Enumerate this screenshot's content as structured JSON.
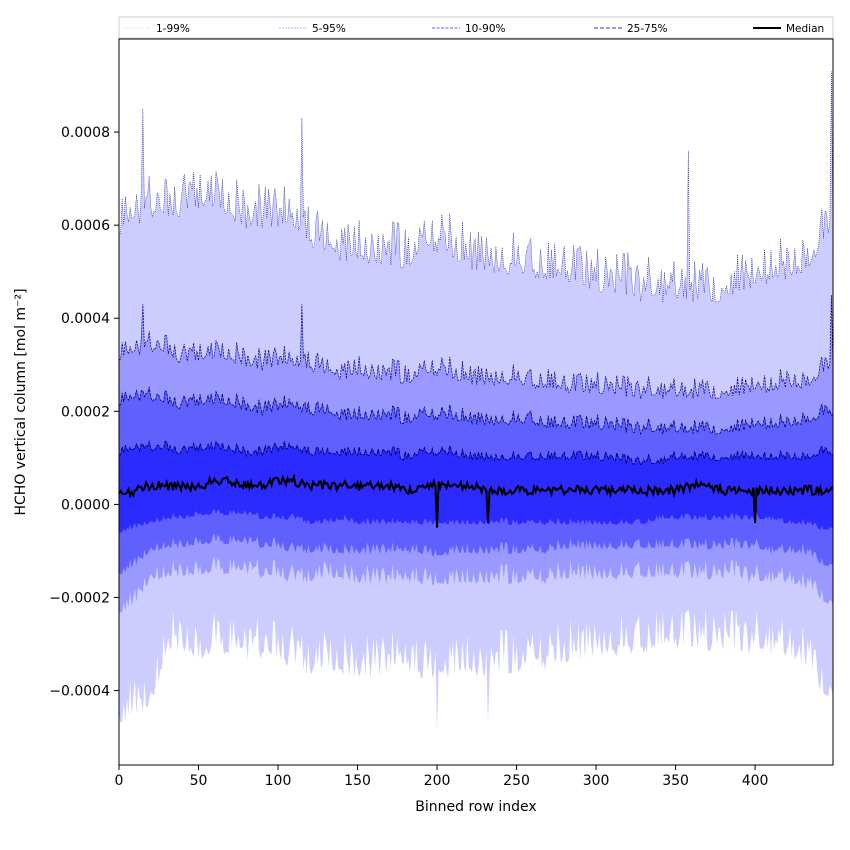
{
  "chart_data": {
    "type": "area",
    "title": "",
    "xlabel": "Binned row index",
    "ylabel": "HCHO vertical column [mol m⁻²]",
    "xlim": [
      0,
      449
    ],
    "ylim": [
      -0.00056,
      0.001
    ],
    "x_ticks": [
      0,
      50,
      100,
      150,
      200,
      250,
      300,
      350,
      400
    ],
    "y_ticks": [
      -0.0004,
      -0.0002,
      0.0,
      0.0002,
      0.0004,
      0.0006,
      0.0008
    ],
    "y_tick_labels": [
      "−0.0004",
      "−0.0002",
      "0.0000",
      "0.0002",
      "0.0004",
      "0.0006",
      "0.0008"
    ],
    "grid": false,
    "legend_position": "top",
    "x": [
      0,
      10,
      20,
      30,
      40,
      50,
      60,
      70,
      80,
      90,
      100,
      110,
      120,
      130,
      140,
      150,
      160,
      170,
      180,
      190,
      200,
      210,
      220,
      230,
      240,
      250,
      260,
      270,
      280,
      290,
      300,
      310,
      320,
      330,
      340,
      350,
      360,
      370,
      380,
      390,
      400,
      410,
      420,
      430,
      440,
      449
    ],
    "series": [
      {
        "name": "1-99%",
        "style": "fill",
        "color": "#ccccff",
        "lower": [
          -0.00046,
          -0.00044,
          -0.00043,
          -0.0003,
          -0.0003,
          -0.00031,
          -0.0003,
          -0.0003,
          -0.00031,
          -0.00031,
          -0.00032,
          -0.00033,
          -0.00035,
          -0.00034,
          -0.00034,
          -0.00035,
          -0.00035,
          -0.00034,
          -0.00034,
          -0.00035,
          -0.00036,
          -0.00034,
          -0.00034,
          -0.00035,
          -0.00034,
          -0.00034,
          -0.00033,
          -0.00033,
          -0.00032,
          -0.00031,
          -0.0003,
          -0.0003,
          -0.0003,
          -0.0003,
          -0.00029,
          -0.00029,
          -0.00029,
          -0.00029,
          -0.00029,
          -0.0003,
          -0.0003,
          -0.0003,
          -0.00031,
          -0.00032,
          -0.00037,
          -0.0004
        ],
        "upper": [
          0.0006,
          0.00062,
          0.00064,
          0.00063,
          0.00064,
          0.00066,
          0.00065,
          0.00064,
          0.00062,
          0.00062,
          0.00062,
          0.0006,
          0.00058,
          0.00056,
          0.00055,
          0.00055,
          0.00054,
          0.00054,
          0.00053,
          0.00055,
          0.00057,
          0.00055,
          0.00053,
          0.00053,
          0.00052,
          0.00052,
          0.00051,
          0.0005,
          0.0005,
          0.00049,
          0.00048,
          0.00048,
          0.00047,
          0.00046,
          0.00046,
          0.00046,
          0.00046,
          0.00046,
          0.00046,
          0.00047,
          0.00048,
          0.0005,
          0.0005,
          0.00052,
          0.00056,
          0.0006
        ]
      },
      {
        "name": "5-95%",
        "style": "fill",
        "color": "#9999ff",
        "lower": [
          -0.00023,
          -0.00021,
          -0.00016,
          -0.00015,
          -0.00015,
          -0.00014,
          -0.00014,
          -0.00014,
          -0.00014,
          -0.00015,
          -0.00015,
          -0.00016,
          -0.00016,
          -0.00015,
          -0.00015,
          -0.00016,
          -0.00016,
          -0.00016,
          -0.00016,
          -0.00016,
          -0.00017,
          -0.00016,
          -0.00016,
          -0.00016,
          -0.00016,
          -0.00016,
          -0.00016,
          -0.00016,
          -0.00015,
          -0.00015,
          -0.00015,
          -0.00015,
          -0.00015,
          -0.00015,
          -0.00015,
          -0.00015,
          -0.00015,
          -0.00015,
          -0.00015,
          -0.00015,
          -0.00016,
          -0.00016,
          -0.00016,
          -0.00017,
          -0.00019,
          -0.00021
        ],
        "upper": [
          0.00032,
          0.00033,
          0.00034,
          0.00033,
          0.00031,
          0.00032,
          0.00032,
          0.00032,
          0.00031,
          0.0003,
          0.00031,
          0.0003,
          0.0003,
          0.00029,
          0.00028,
          0.00029,
          0.00028,
          0.00028,
          0.00027,
          0.00028,
          0.00029,
          0.00028,
          0.00027,
          0.00027,
          0.00027,
          0.00027,
          0.00026,
          0.00026,
          0.00025,
          0.00025,
          0.00025,
          0.00025,
          0.00024,
          0.00024,
          0.00024,
          0.00024,
          0.00024,
          0.00024,
          0.00024,
          0.00024,
          0.00025,
          0.00025,
          0.00026,
          0.00026,
          0.00028,
          0.0003
        ]
      },
      {
        "name": "10-90%",
        "style": "fill",
        "color": "#6060ff",
        "lower": [
          -0.00015,
          -0.00013,
          -0.0001,
          -9e-05,
          -9e-05,
          -8e-05,
          -8e-05,
          -8e-05,
          -8e-05,
          -9e-05,
          -9e-05,
          -0.0001,
          -0.0001,
          -0.0001,
          -0.0001,
          -0.0001,
          -0.0001,
          -0.0001,
          -0.0001,
          -0.0001,
          -0.00011,
          -0.0001,
          -0.0001,
          -0.0001,
          -0.0001,
          -0.0001,
          -0.0001,
          -0.0001,
          -9e-05,
          -9e-05,
          -9e-05,
          -9e-05,
          -9e-05,
          -9e-05,
          -9e-05,
          -9e-05,
          -9e-05,
          -9e-05,
          -9e-05,
          -9e-05,
          -9e-05,
          -0.0001,
          -0.0001,
          -0.0001,
          -0.00012,
          -0.00013
        ],
        "upper": [
          0.00022,
          0.00023,
          0.00023,
          0.00022,
          0.00021,
          0.00022,
          0.00022,
          0.00022,
          0.00021,
          0.0002,
          0.00021,
          0.00021,
          0.0002,
          0.0002,
          0.00019,
          0.00019,
          0.00019,
          0.00019,
          0.00018,
          0.00019,
          0.00019,
          0.00019,
          0.00018,
          0.00018,
          0.00018,
          0.00018,
          0.00018,
          0.00017,
          0.00017,
          0.00017,
          0.00017,
          0.00017,
          0.00016,
          0.00016,
          0.00016,
          0.00016,
          0.00016,
          0.00016,
          0.00016,
          0.00016,
          0.00017,
          0.00017,
          0.00017,
          0.00018,
          0.00019,
          0.0002
        ]
      },
      {
        "name": "25-75%",
        "style": "fill",
        "color": "#2b2bff",
        "lower": [
          -6e-05,
          -5e-05,
          -4e-05,
          -3e-05,
          -3e-05,
          -2e-05,
          -2e-05,
          -2e-05,
          -2e-05,
          -3e-05,
          -3e-05,
          -3e-05,
          -4e-05,
          -4e-05,
          -3e-05,
          -4e-05,
          -4e-05,
          -4e-05,
          -4e-05,
          -4e-05,
          -4e-05,
          -4e-05,
          -4e-05,
          -4e-05,
          -4e-05,
          -4e-05,
          -4e-05,
          -4e-05,
          -4e-05,
          -4e-05,
          -4e-05,
          -4e-05,
          -4e-05,
          -4e-05,
          -3e-05,
          -3e-05,
          -3e-05,
          -3e-05,
          -3e-05,
          -3e-05,
          -3e-05,
          -3e-05,
          -4e-05,
          -4e-05,
          -5e-05,
          -5e-05
        ],
        "upper": [
          0.00011,
          0.00012,
          0.00012,
          0.00012,
          0.00011,
          0.00012,
          0.00012,
          0.00012,
          0.00011,
          0.00011,
          0.00012,
          0.00012,
          0.00011,
          0.00011,
          0.00011,
          0.00011,
          0.00011,
          0.00011,
          0.0001,
          0.00011,
          0.00011,
          0.00011,
          0.0001,
          0.0001,
          0.0001,
          0.0001,
          0.0001,
          0.0001,
          0.0001,
          0.0001,
          0.0001,
          0.0001,
          9e-05,
          9e-05,
          9e-05,
          0.0001,
          0.0001,
          0.0001,
          0.0001,
          0.0001,
          0.0001,
          0.0001,
          0.0001,
          0.0001,
          0.00011,
          0.00011
        ]
      },
      {
        "name": "Median",
        "style": "line",
        "color": "#000000",
        "values": [
          2e-05,
          3e-05,
          4e-05,
          4e-05,
          4e-05,
          4e-05,
          5e-05,
          5e-05,
          4e-05,
          4e-05,
          5e-05,
          5e-05,
          4e-05,
          4e-05,
          4e-05,
          4e-05,
          4e-05,
          4e-05,
          3e-05,
          4e-05,
          4e-05,
          4e-05,
          4e-05,
          3e-05,
          3e-05,
          3e-05,
          3e-05,
          3e-05,
          3e-05,
          3e-05,
          3e-05,
          3e-05,
          3e-05,
          3e-05,
          3e-05,
          3e-05,
          4e-05,
          4e-05,
          3e-05,
          3e-05,
          3e-05,
          3e-05,
          3e-05,
          3e-05,
          3e-05,
          3e-05
        ]
      }
    ],
    "spikes": [
      {
        "x": 15,
        "upper99": 0.00085,
        "upper95": 0.00043
      },
      {
        "x": 115,
        "upper99": 0.00083,
        "upper95": 0.00043
      },
      {
        "x": 200,
        "lower99": -0.00049,
        "median": -5e-05
      },
      {
        "x": 232,
        "lower99": -0.00047,
        "median": -4e-05
      },
      {
        "x": 358,
        "upper99": 0.00076
      },
      {
        "x": 400,
        "median": -4e-05
      },
      {
        "x": 448,
        "upper99": 0.00093,
        "upper95": 0.00045
      }
    ]
  }
}
